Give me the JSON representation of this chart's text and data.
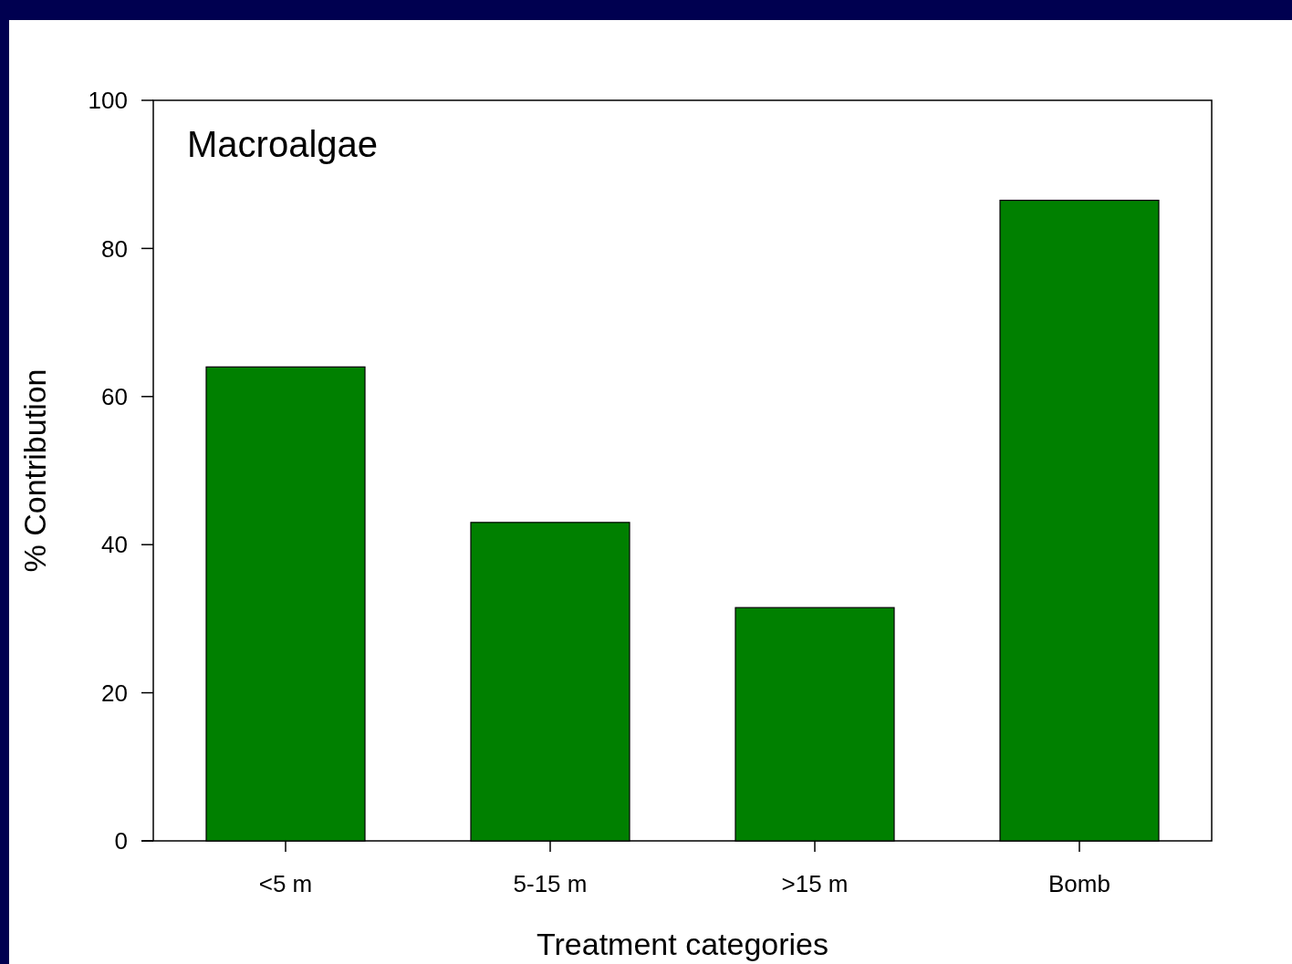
{
  "chart_data": {
    "type": "bar",
    "title": "Macroalgae",
    "xlabel": "Treatment categories",
    "ylabel": "% Contribution",
    "categories": [
      "<5 m",
      "5-15 m",
      ">15 m",
      "Bomb"
    ],
    "values": [
      64,
      43,
      31.5,
      86.5
    ],
    "color": "#008000",
    "ylim": [
      0,
      100
    ],
    "yticks": [
      0,
      20,
      40,
      60,
      80,
      100
    ]
  }
}
